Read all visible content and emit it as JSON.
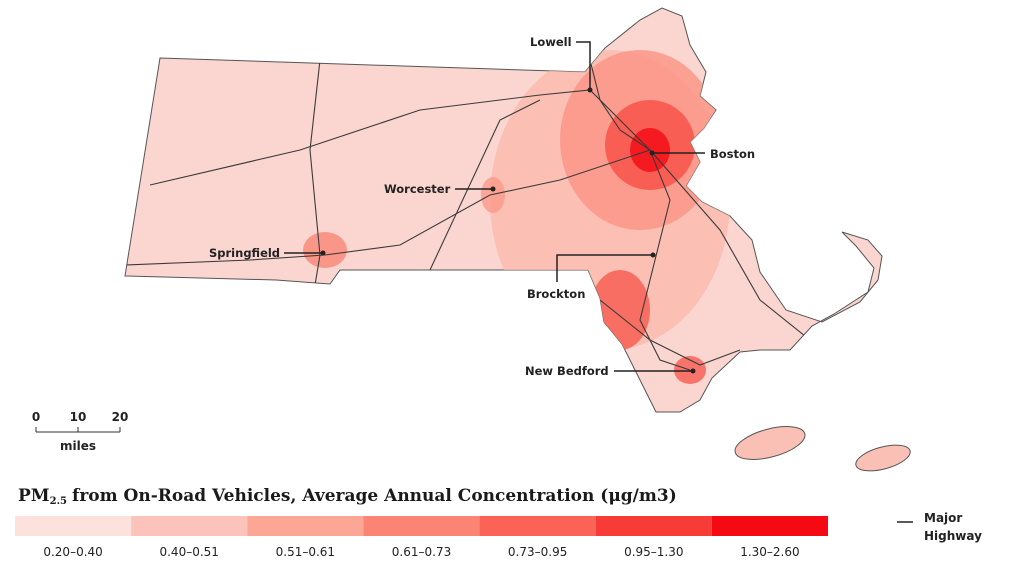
{
  "map": {
    "title": {
      "main": "PM",
      "subscript": "2.5",
      "rest": "from On-Road Vehicles, Average Annual Concentration (μg/m3)"
    },
    "cities": [
      {
        "label": "Lowell"
      },
      {
        "label": "Boston"
      },
      {
        "label": "Worcester"
      },
      {
        "label": "Springfield"
      },
      {
        "label": "Brockton"
      },
      {
        "label": "New Bedford"
      }
    ],
    "scale_bar": {
      "ticks": [
        0,
        10,
        20
      ],
      "unit": "miles"
    },
    "legend": [
      {
        "label": "0.20–0.40",
        "color": "#fde1dd"
      },
      {
        "label": "0.40–0.51",
        "color": "#fcc3ba"
      },
      {
        "label": "0.51–0.61",
        "color": "#fca696"
      },
      {
        "label": "0.61–0.73",
        "color": "#fb8474"
      },
      {
        "label": "0.73–0.95",
        "color": "#fa6356"
      },
      {
        "label": "0.95–1.30",
        "color": "#f73c37"
      },
      {
        "label": "1.30–2.60",
        "color": "#f50a14"
      }
    ],
    "highway_legend": [
      "Major",
      "Highway"
    ]
  }
}
